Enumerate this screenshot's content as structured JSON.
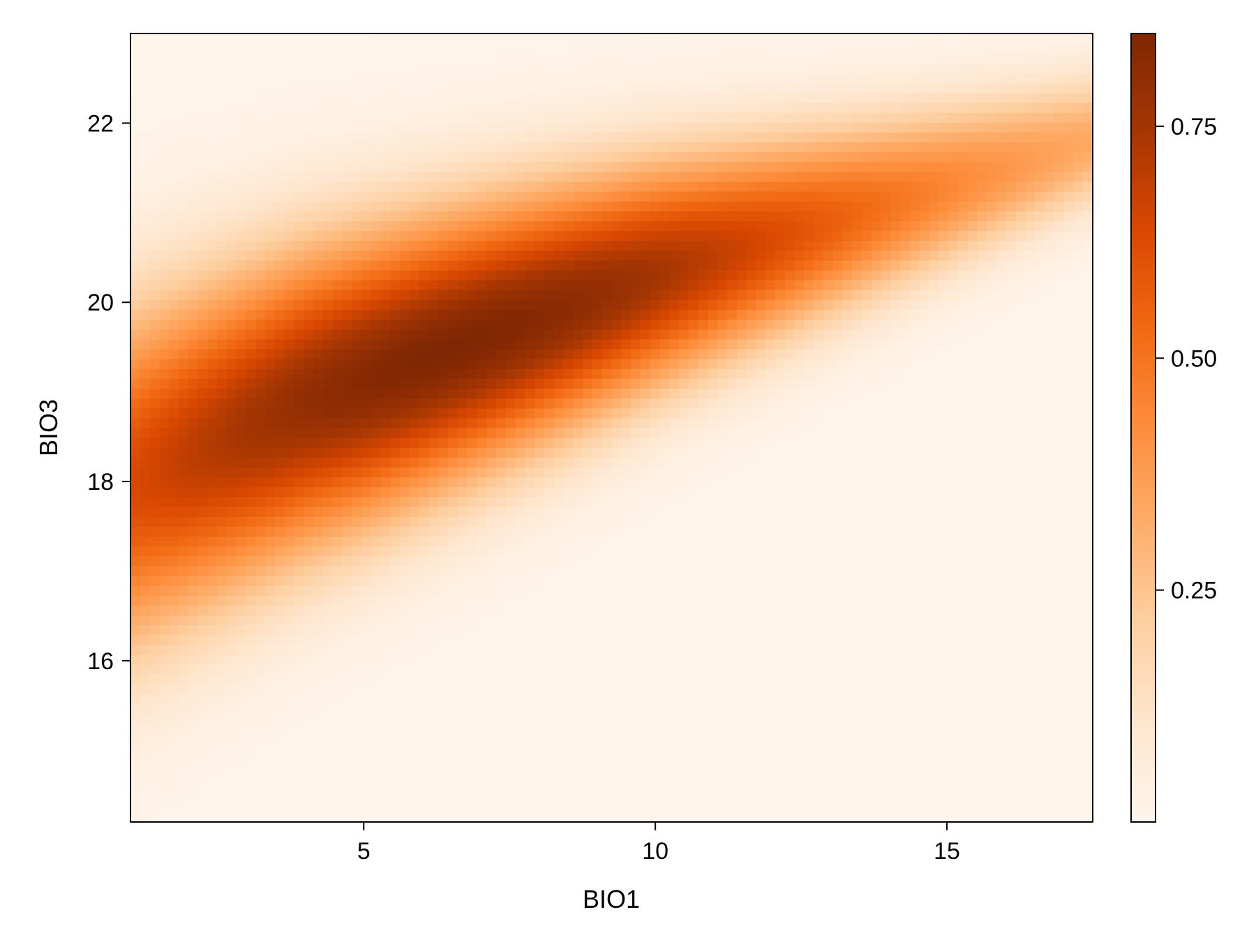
{
  "chart_data": {
    "type": "heatmap",
    "title": "",
    "xlabel": "BIO1",
    "ylabel": "BIO3",
    "xlim": [
      1.0,
      17.5
    ],
    "ylim": [
      14.2,
      23.0
    ],
    "xticks": [
      5,
      10,
      15
    ],
    "yticks": [
      16,
      18,
      20,
      22
    ],
    "x_tick_labels": [
      "5",
      "10",
      "15"
    ],
    "y_tick_labels": [
      "16",
      "18",
      "20",
      "22"
    ],
    "grid": false,
    "grid_resolution": [
      100,
      80
    ],
    "colormap": "Oranges",
    "colors": [
      "#fff5eb",
      "#fee6ce",
      "#fdd0a2",
      "#fdae6b",
      "#fd8d3c",
      "#f16913",
      "#d94801",
      "#a63603",
      "#7f2704"
    ],
    "colorbar": {
      "range": [
        0.0,
        0.85
      ],
      "ticks": [
        0.25,
        0.5,
        0.75
      ],
      "tick_labels": [
        "0.25",
        "0.50",
        "0.75"
      ]
    },
    "density_ridge": [
      {
        "x": 1.0,
        "y": 18.0
      },
      {
        "x": 4.0,
        "y": 18.9
      },
      {
        "x": 7.0,
        "y": 19.6
      },
      {
        "x": 10.0,
        "y": 20.3
      },
      {
        "x": 13.0,
        "y": 20.9
      },
      {
        "x": 16.0,
        "y": 21.5
      }
    ],
    "density_peak": {
      "x": 6.5,
      "y": 19.5,
      "value": 0.85
    }
  }
}
